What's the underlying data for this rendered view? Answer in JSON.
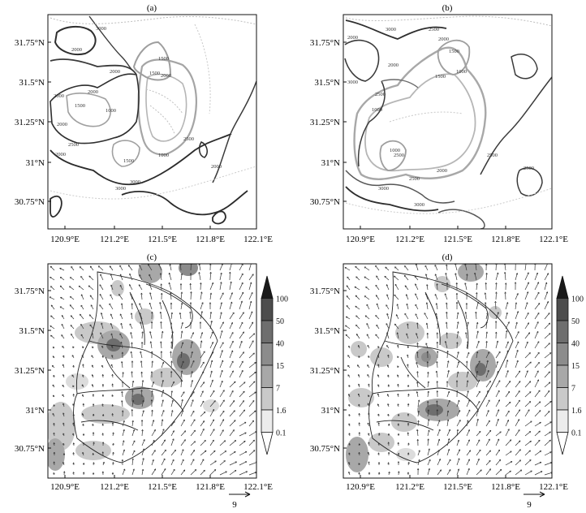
{
  "chart_data": [
    {
      "type": "contour",
      "panel_label": "(a)",
      "x_ticks": [
        "120.9°E",
        "121.2°E",
        "121.5°E",
        "121.8°E",
        "122.1°E"
      ],
      "y_ticks": [
        "31.75°N",
        "31.5°N",
        "31.25°N",
        "31°N",
        "30.75°N"
      ],
      "xlim": [
        120.8,
        122.3
      ],
      "ylim": [
        30.6,
        31.9
      ],
      "contour_labels": [
        "3000",
        "2000",
        "2000",
        "2000",
        "1500",
        "1500",
        "2000",
        "1000",
        "1500",
        "2000",
        "2000",
        "1500",
        "1000",
        "3000",
        "2500",
        "3000",
        "2000",
        "2000",
        "2500"
      ]
    },
    {
      "type": "contour",
      "panel_label": "(b)",
      "x_ticks": [
        "120.9°E",
        "121.2°E",
        "121.5°E",
        "121.8°E",
        "122.1°E"
      ],
      "y_ticks": [
        "31.75°N",
        "31.5°N",
        "31.25°N",
        "31°N",
        "30.75°N"
      ],
      "xlim": [
        120.8,
        122.3
      ],
      "ylim": [
        30.6,
        31.9
      ],
      "contour_labels": [
        "2000",
        "3000",
        "2500",
        "2000",
        "1500",
        "1000",
        "3000",
        "2500",
        "2000",
        "1000",
        "1500",
        "2500",
        "3000",
        "1000",
        "2000",
        "3000",
        "2500",
        "2500",
        "2500"
      ]
    },
    {
      "type": "filled-contour-vector",
      "panel_label": "(c)",
      "x_ticks": [
        "120.9°E",
        "121.2°E",
        "121.5°E",
        "121.8°E",
        "122.1°E"
      ],
      "y_ticks": [
        "31.75°N",
        "31.5°N",
        "31.25°N",
        "31°N",
        "30.75°N"
      ],
      "xlim": [
        120.8,
        122.3
      ],
      "ylim": [
        30.6,
        31.9
      ],
      "colorbar_levels": [
        "100",
        "50",
        "40",
        "15",
        "7",
        "1.6",
        "0.1"
      ],
      "reference_vector": "9"
    },
    {
      "type": "filled-contour-vector",
      "panel_label": "(d)",
      "x_ticks": [
        "120.9°E",
        "121.2°E",
        "121.5°E",
        "121.8°E",
        "122.1°E"
      ],
      "y_ticks": [
        "31.75°N",
        "31.5°N",
        "31.25°N",
        "31°N",
        "30.75°N"
      ],
      "xlim": [
        120.8,
        122.3
      ],
      "ylim": [
        30.6,
        31.9
      ],
      "colorbar_levels": [
        "100",
        "50",
        "40",
        "15",
        "7",
        "1.6",
        "0.1"
      ],
      "reference_vector": "9"
    }
  ],
  "colors": {
    "colorbar_fills": [
      "#1a1a1a",
      "#4d4d4d",
      "#6e6e6e",
      "#8c8c8c",
      "#a8a8a8",
      "#c9c9c9",
      "#ececec",
      "#ffffff"
    ],
    "dark_contour": "#2b2b2b",
    "light_contour": "#9a9a9a",
    "dotted_contour": "#bdbdbd"
  }
}
